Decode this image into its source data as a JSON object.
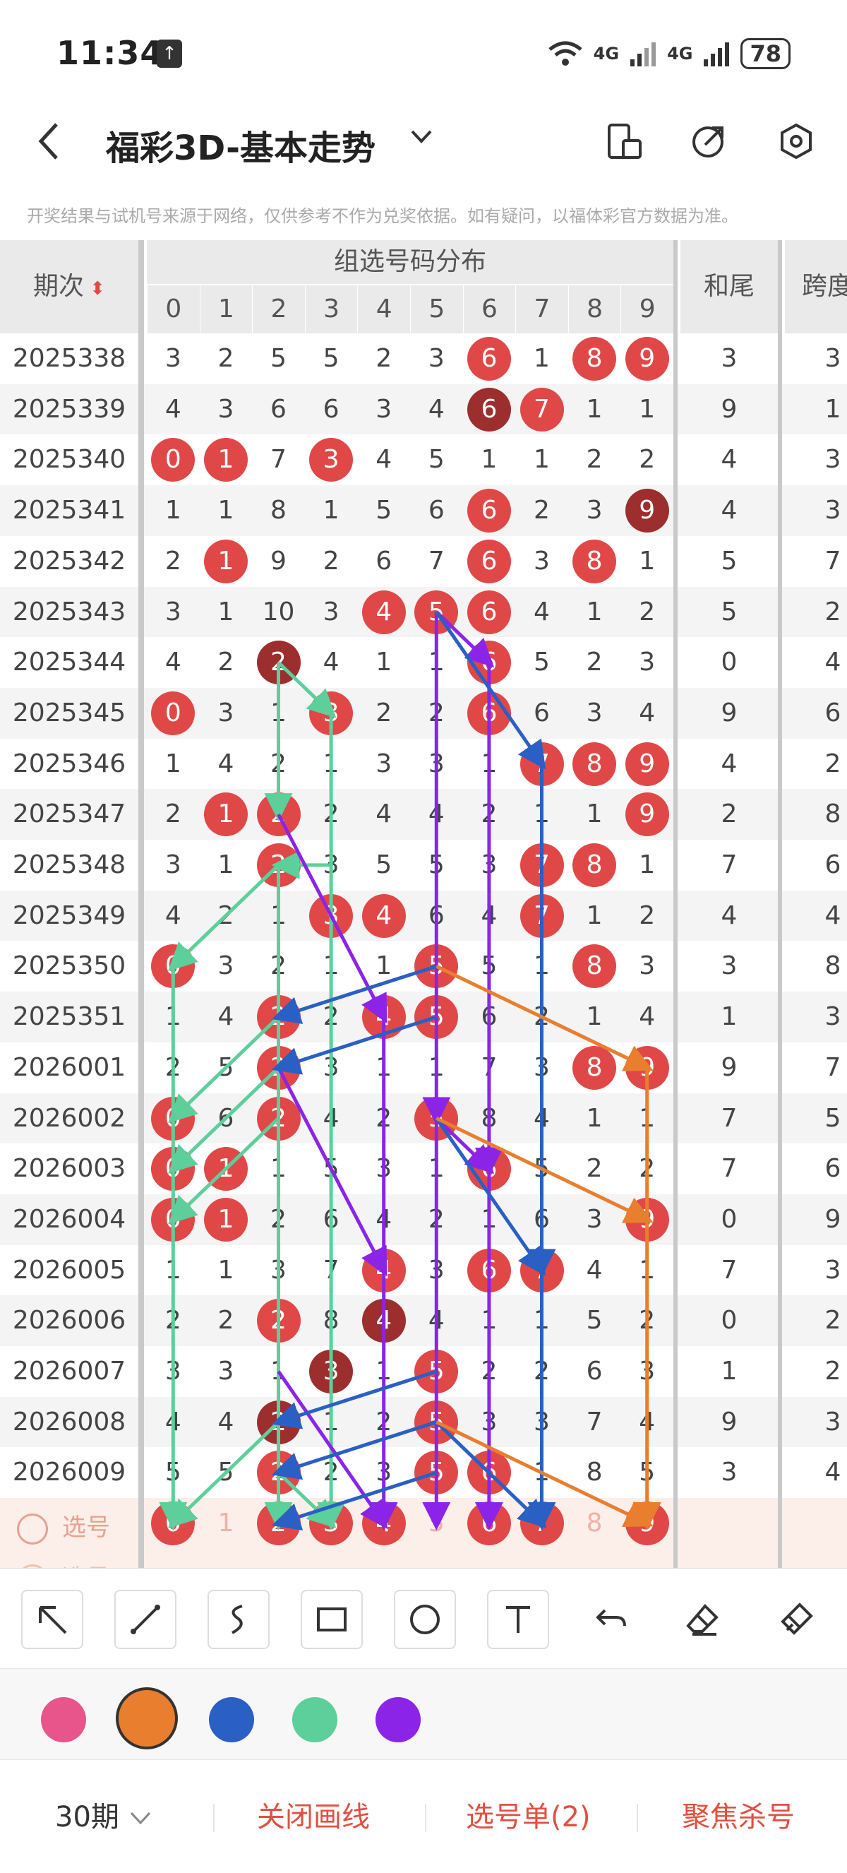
{
  "status": {
    "time": "11:34",
    "signal1": "4G",
    "signal2": "4G",
    "battery": "78"
  },
  "titlebar": {
    "title": "福彩3D-基本走势"
  },
  "notice": "开奖结果与试机号来源于网络，仅供参考不作为兑奖依据。如有疑问，以福体彩官方数据为准。",
  "table": {
    "period_header": "期次",
    "group_header": "组选号码分布",
    "digits": [
      "0",
      "1",
      "2",
      "3",
      "4",
      "5",
      "6",
      "7",
      "8",
      "9"
    ],
    "hewei_header": "和尾",
    "kuadu_header": "跨度",
    "rows": [
      {
        "period": "2025338",
        "cells": [
          "3",
          "2",
          "5",
          "5",
          "2",
          "3",
          "6",
          "1",
          "8",
          "9"
        ],
        "hits": [
          6,
          8,
          9
        ],
        "dark": [],
        "hewei": "3",
        "kuadu": "3"
      },
      {
        "period": "2025339",
        "cells": [
          "4",
          "3",
          "6",
          "6",
          "3",
          "4",
          "6",
          "7",
          "1",
          "1"
        ],
        "hits": [
          6,
          7
        ],
        "dark": [
          6
        ],
        "hewei": "9",
        "kuadu": "1"
      },
      {
        "period": "2025340",
        "cells": [
          "0",
          "1",
          "7",
          "3",
          "4",
          "5",
          "1",
          "1",
          "2",
          "2"
        ],
        "hits": [
          0,
          1,
          3
        ],
        "dark": [],
        "hewei": "4",
        "kuadu": "3"
      },
      {
        "period": "2025341",
        "cells": [
          "1",
          "1",
          "8",
          "1",
          "5",
          "6",
          "6",
          "2",
          "3",
          "9"
        ],
        "hits": [
          6,
          9
        ],
        "dark": [
          9
        ],
        "hewei": "4",
        "kuadu": "3"
      },
      {
        "period": "2025342",
        "cells": [
          "2",
          "1",
          "9",
          "2",
          "6",
          "7",
          "6",
          "3",
          "8",
          "1"
        ],
        "hits": [
          1,
          6,
          8
        ],
        "dark": [],
        "hewei": "5",
        "kuadu": "7"
      },
      {
        "period": "2025343",
        "cells": [
          "3",
          "1",
          "10",
          "3",
          "4",
          "5",
          "6",
          "4",
          "1",
          "2"
        ],
        "hits": [
          4,
          5,
          6
        ],
        "dark": [],
        "hewei": "5",
        "kuadu": "2"
      },
      {
        "period": "2025344",
        "cells": [
          "4",
          "2",
          "2",
          "4",
          "1",
          "1",
          "6",
          "5",
          "2",
          "3"
        ],
        "hits": [
          2,
          6
        ],
        "dark": [
          2
        ],
        "hewei": "0",
        "kuadu": "4"
      },
      {
        "period": "2025345",
        "cells": [
          "0",
          "3",
          "1",
          "3",
          "2",
          "2",
          "6",
          "6",
          "3",
          "4"
        ],
        "hits": [
          0,
          3,
          6
        ],
        "dark": [],
        "hewei": "9",
        "kuadu": "6"
      },
      {
        "period": "2025346",
        "cells": [
          "1",
          "4",
          "2",
          "1",
          "3",
          "3",
          "1",
          "7",
          "8",
          "9"
        ],
        "hits": [
          7,
          8,
          9
        ],
        "dark": [],
        "hewei": "4",
        "kuadu": "2"
      },
      {
        "period": "2025347",
        "cells": [
          "2",
          "1",
          "2",
          "2",
          "4",
          "4",
          "2",
          "1",
          "1",
          "9"
        ],
        "hits": [
          1,
          2,
          9
        ],
        "dark": [],
        "hewei": "2",
        "kuadu": "8"
      },
      {
        "period": "2025348",
        "cells": [
          "3",
          "1",
          "2",
          "3",
          "5",
          "5",
          "3",
          "7",
          "8",
          "1"
        ],
        "hits": [
          2,
          7,
          8
        ],
        "dark": [],
        "hewei": "7",
        "kuadu": "6"
      },
      {
        "period": "2025349",
        "cells": [
          "4",
          "2",
          "1",
          "3",
          "4",
          "6",
          "4",
          "7",
          "1",
          "2"
        ],
        "hits": [
          3,
          4,
          7
        ],
        "dark": [],
        "hewei": "4",
        "kuadu": "4"
      },
      {
        "period": "2025350",
        "cells": [
          "0",
          "3",
          "2",
          "1",
          "1",
          "5",
          "5",
          "1",
          "8",
          "3"
        ],
        "hits": [
          0,
          5,
          8
        ],
        "dark": [],
        "hewei": "3",
        "kuadu": "8"
      },
      {
        "period": "2025351",
        "cells": [
          "1",
          "4",
          "2",
          "2",
          "4",
          "5",
          "6",
          "2",
          "1",
          "4"
        ],
        "hits": [
          2,
          4,
          5
        ],
        "dark": [],
        "hewei": "1",
        "kuadu": "3"
      },
      {
        "period": "2026001",
        "cells": [
          "2",
          "5",
          "2",
          "3",
          "1",
          "1",
          "7",
          "3",
          "8",
          "9"
        ],
        "hits": [
          2,
          8,
          9
        ],
        "dark": [],
        "hewei": "9",
        "kuadu": "7"
      },
      {
        "period": "2026002",
        "cells": [
          "0",
          "6",
          "2",
          "4",
          "2",
          "5",
          "8",
          "4",
          "1",
          "1"
        ],
        "hits": [
          0,
          2,
          5
        ],
        "dark": [],
        "hewei": "7",
        "kuadu": "5"
      },
      {
        "period": "2026003",
        "cells": [
          "0",
          "1",
          "1",
          "5",
          "3",
          "1",
          "6",
          "5",
          "2",
          "2"
        ],
        "hits": [
          0,
          1,
          6
        ],
        "dark": [],
        "hewei": "7",
        "kuadu": "6"
      },
      {
        "period": "2026004",
        "cells": [
          "0",
          "1",
          "2",
          "6",
          "4",
          "2",
          "1",
          "6",
          "3",
          "9"
        ],
        "hits": [
          0,
          1,
          9
        ],
        "dark": [],
        "hewei": "0",
        "kuadu": "9"
      },
      {
        "period": "2026005",
        "cells": [
          "1",
          "1",
          "3",
          "7",
          "4",
          "3",
          "6",
          "7",
          "4",
          "1"
        ],
        "hits": [
          4,
          6,
          7
        ],
        "dark": [],
        "hewei": "7",
        "kuadu": "3"
      },
      {
        "period": "2026006",
        "cells": [
          "2",
          "2",
          "2",
          "8",
          "4",
          "4",
          "1",
          "1",
          "5",
          "2"
        ],
        "hits": [
          2,
          4
        ],
        "dark": [
          4
        ],
        "hewei": "0",
        "kuadu": "2"
      },
      {
        "period": "2026007",
        "cells": [
          "3",
          "3",
          "1",
          "3",
          "1",
          "5",
          "2",
          "2",
          "6",
          "3"
        ],
        "hits": [
          3,
          5
        ],
        "dark": [
          3
        ],
        "hewei": "1",
        "kuadu": "2"
      },
      {
        "period": "2026008",
        "cells": [
          "4",
          "4",
          "2",
          "1",
          "2",
          "5",
          "3",
          "3",
          "7",
          "4"
        ],
        "hits": [
          2,
          5
        ],
        "dark": [
          2
        ],
        "hewei": "9",
        "kuadu": "3"
      },
      {
        "period": "2026009",
        "cells": [
          "5",
          "5",
          "2",
          "2",
          "3",
          "5",
          "6",
          "1",
          "8",
          "5"
        ],
        "hits": [
          2,
          5,
          6
        ],
        "dark": [],
        "hewei": "3",
        "kuadu": "4"
      }
    ],
    "pick_label": "选号",
    "pick_cells": [
      "0",
      "1",
      "2",
      "3",
      "4",
      "5",
      "6",
      "7",
      "8",
      "9"
    ],
    "pick_selected": [
      0,
      2,
      3,
      4,
      6,
      7,
      9
    ],
    "pick_label2": "选号"
  },
  "colors": {
    "pink": "#e8558a",
    "orange": "#e87e2e",
    "blue": "#2a5fc4",
    "green": "#5ccf9a",
    "purple": "#8b24e6",
    "ball": "#e04848",
    "ball_dark": "#9c2e2e",
    "action_red": "#e05040"
  },
  "tools": [
    "arrow-icon",
    "line-icon",
    "curve-icon",
    "rectangle-icon",
    "circle-icon",
    "text-icon",
    "undo-icon",
    "eraser-icon",
    "clear-icon"
  ],
  "bottombar": {
    "periods": "30期",
    "close_lines": "关闭画线",
    "pick_list": "选号单(2)",
    "focus_kill": "聚焦杀号"
  }
}
